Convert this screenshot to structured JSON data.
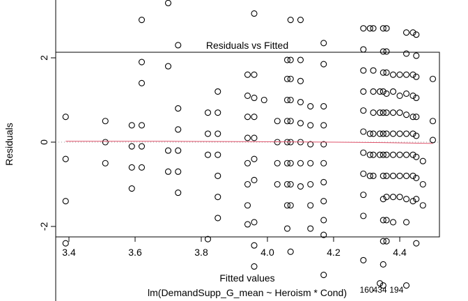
{
  "chart_data": {
    "type": "scatter",
    "title": "Residuals vs Fitted",
    "xlabel": "Fitted values",
    "sublabel": "lm(DemandSupp_G_mean ~ Heroism * Cond)",
    "ylabel": "Residuals",
    "xlim": [
      3.36,
      4.52
    ],
    "ylim": [
      -4.2,
      4.2
    ],
    "xticks": [
      "3.4",
      "3.6",
      "3.8",
      "4.0",
      "4.2",
      "4.4"
    ],
    "yticks": [
      "-4",
      "-2",
      "0",
      "2",
      "4"
    ],
    "reference_line": 0,
    "smoother": {
      "name": "lowess",
      "color": "#DF536B",
      "x": [
        3.39,
        3.7,
        4.0,
        4.2,
        4.35,
        4.5
      ],
      "y": [
        0.02,
        0.02,
        0.01,
        0.0,
        -0.01,
        -0.03
      ]
    },
    "columns": [
      {
        "x": 3.39,
        "r": [
          0.6,
          -0.4,
          -1.4,
          -2.4
        ]
      },
      {
        "x": 3.51,
        "r": [
          0.5,
          0,
          -0.5
        ]
      },
      {
        "x": 3.59,
        "r": [
          0.4,
          -0.1,
          -0.6,
          -1.1
        ]
      },
      {
        "x": 3.62,
        "r": [
          2.9,
          1.9,
          1.4,
          0.4,
          -0.1,
          -0.6
        ]
      },
      {
        "x": 3.7,
        "r": [
          3.3,
          1.8,
          -0.2,
          -0.7
        ]
      },
      {
        "x": 3.73,
        "r": [
          2.3,
          0.8,
          0.3,
          -0.2,
          -0.7,
          -1.2
        ]
      },
      {
        "x": 3.82,
        "r": [
          0.7,
          0.2,
          -0.3,
          -2.3
        ]
      },
      {
        "x": 3.85,
        "r": [
          1.2,
          0.7,
          0.2,
          -0.3,
          -0.8,
          -1.3,
          -1.8
        ]
      },
      {
        "x": 3.94,
        "r": [
          1.6,
          1.1,
          0.6,
          0.1,
          -0.5,
          -1.0,
          -1.5,
          -1.95
        ]
      },
      {
        "x": 3.96,
        "r": [
          3.05,
          1.6,
          1.05,
          0.6,
          0.1,
          -0.4,
          -0.9,
          -1.9,
          -2.45,
          -2.95
        ]
      },
      {
        "x": 3.99,
        "r": [
          1.0
        ]
      },
      {
        "x": 4.03,
        "r": [
          0.5,
          0,
          -0.5,
          -1.0
        ]
      },
      {
        "x": 4.06,
        "r": [
          1.95,
          1.5,
          1.0,
          0.5,
          0,
          -0.5,
          -1.0,
          -1.5,
          -2.05
        ]
      },
      {
        "x": 4.07,
        "r": [
          2.9,
          1.95,
          1.5,
          1.0,
          0.5,
          0,
          -0.5,
          -1.0,
          -1.5,
          -2.6
        ]
      },
      {
        "x": 4.1,
        "r": [
          2.9,
          1.95,
          1.45,
          0.95,
          0.45,
          0,
          -0.5,
          -1.05
        ]
      },
      {
        "x": 4.13,
        "r": [
          0.85,
          0.4,
          -0.05,
          -0.5,
          -1.0,
          -1.5,
          -2.05
        ]
      },
      {
        "x": 4.17,
        "r": [
          2.35,
          1.85,
          0.85,
          0.4,
          -0.05,
          -0.5,
          -0.95,
          -1.4,
          -1.85,
          -2.2,
          -3.15
        ]
      },
      {
        "x": 4.29,
        "r": [
          2.7,
          2.2,
          1.7,
          1.2,
          0.75,
          0.25,
          -0.25,
          -0.75,
          -1.25,
          -1.75,
          -2.8
        ]
      },
      {
        "x": 4.31,
        "r": [
          2.7,
          0.2,
          -0.3,
          -0.8
        ]
      },
      {
        "x": 4.32,
        "r": [
          2.7,
          1.7,
          1.2,
          0.7,
          0.2,
          -0.3,
          -0.8
        ]
      },
      {
        "x": 4.34,
        "r": [
          1.2,
          0.7,
          0.2,
          -0.3,
          -3.35
        ]
      },
      {
        "x": 4.35,
        "r": [
          2.7,
          2.15,
          1.65,
          1.2,
          0.7,
          0.2,
          -0.3,
          -0.8,
          -1.35,
          -1.85,
          -2.35,
          -2.9,
          -3.4
        ]
      },
      {
        "x": 4.36,
        "r": [
          2.7,
          2.15,
          1.65,
          1.15,
          0.7,
          0.2,
          -0.3,
          -0.8,
          -1.3,
          -1.85,
          -2.35
        ]
      },
      {
        "x": 4.38,
        "r": [
          1.6,
          1.2,
          0.7,
          0.2,
          -0.3,
          -0.8,
          -1.3,
          -1.9
        ]
      },
      {
        "x": 4.4,
        "r": [
          1.6,
          1.1,
          0.7,
          0.2,
          -0.3,
          -0.8,
          -1.3
        ]
      },
      {
        "x": 4.42,
        "r": [
          2.6,
          2.1,
          1.6,
          1.15,
          0.65,
          0.2,
          -0.3,
          -0.8,
          -1.35,
          -1.9,
          -3.4
        ]
      },
      {
        "x": 4.44,
        "r": [
          2.6,
          1.6,
          1.1,
          0.6,
          0.2,
          -0.3,
          -0.8,
          -1.4
        ]
      },
      {
        "x": 4.45,
        "r": [
          2.55,
          2.05,
          1.55,
          1.05,
          0.6,
          0.15,
          -0.35,
          -0.85,
          -1.35,
          -2.4
        ]
      },
      {
        "x": 4.47,
        "r": [
          -0.45,
          -1.0,
          -1.5
        ]
      },
      {
        "x": 4.5,
        "r": [
          1.5,
          0.5,
          0.05
        ]
      }
    ],
    "point_labels": [
      {
        "text": "160",
        "x": 4.3,
        "y": -3.5
      },
      {
        "text": "434",
        "x": 4.34,
        "y": -3.5
      },
      {
        "text": "194",
        "x": 4.39,
        "y": -3.5
      }
    ]
  }
}
